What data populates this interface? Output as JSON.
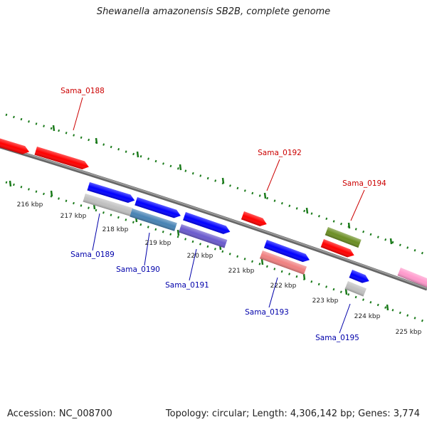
{
  "title": "Shewanella amazonensis SB2B, complete genome",
  "accession": "Accession: NC_008700",
  "summary": "Topology: circular; Length: 4,306,142 bp; Genes: 3,774",
  "colors": {
    "backbone": "#808080",
    "ticks": "#1a7a1a",
    "forward_label": "#cc0000",
    "reverse_label": "#0000aa",
    "scale_label": "#222222"
  },
  "scale_labels": [
    "216 kbp",
    "217 kbp",
    "218 kbp",
    "219 kbp",
    "220 kbp",
    "221 kbp",
    "222 kbp",
    "223 kbp",
    "224 kbp",
    "225 kbp"
  ],
  "genes": [
    {
      "name": "",
      "color": "#ff0000",
      "strand": "forward"
    },
    {
      "name": "Sama_0188",
      "color": "#ff0000",
      "strand": "forward"
    },
    {
      "name": "Sama_0192",
      "color": "#ff0000",
      "strand": "forward"
    },
    {
      "name": "",
      "color": "#6b8e23",
      "strand": "forward"
    },
    {
      "name": "Sama_0194",
      "color": "#ff0000",
      "strand": "forward"
    },
    {
      "name": "",
      "color": "#ff99cc",
      "strand": "forward"
    },
    {
      "name": "",
      "color": "#0000ff",
      "strand": "reverse"
    },
    {
      "name": "",
      "color": "#0000ff",
      "strand": "reverse"
    },
    {
      "name": "",
      "color": "#0000ff",
      "strand": "reverse"
    },
    {
      "name": "",
      "color": "#0000ff",
      "strand": "reverse"
    },
    {
      "name": "",
      "color": "#0000ff",
      "strand": "reverse"
    },
    {
      "name": "Sama_0189",
      "color": "#c0c0c0",
      "strand": "reverse"
    },
    {
      "name": "Sama_0190",
      "color": "#4682b4",
      "strand": "reverse"
    },
    {
      "name": "Sama_0191",
      "color": "#6a5acd",
      "strand": "reverse"
    },
    {
      "name": "Sama_0193",
      "color": "#f08080",
      "strand": "reverse"
    },
    {
      "name": "Sama_0195",
      "color": "#c0c0c0",
      "strand": "reverse"
    }
  ]
}
